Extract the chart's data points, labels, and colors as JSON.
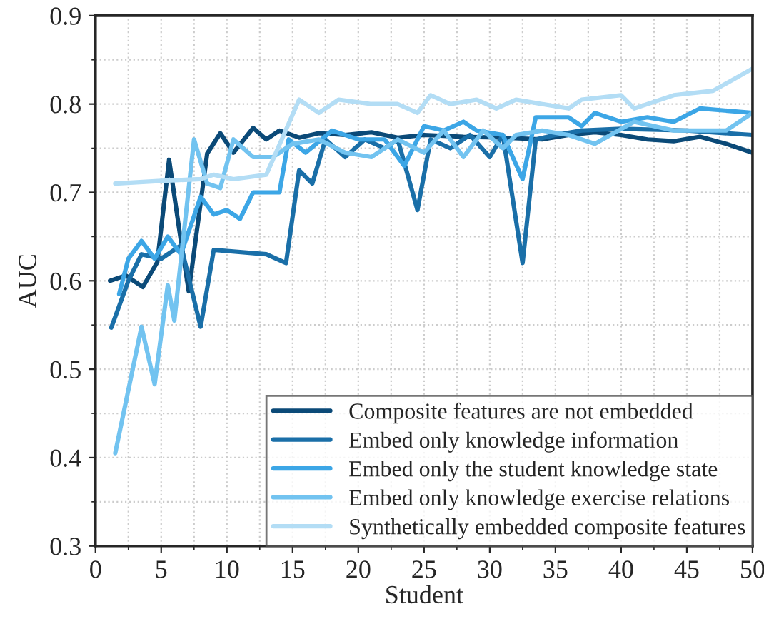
{
  "chart_data": {
    "type": "line",
    "xlabel": "Student",
    "ylabel": "AUC",
    "xlim": [
      0,
      50
    ],
    "ylim": [
      0.3,
      0.9
    ],
    "xticks": [
      0,
      5,
      10,
      15,
      20,
      25,
      30,
      35,
      40,
      45,
      50
    ],
    "yticks": [
      0.3,
      0.4,
      0.5,
      0.6,
      0.7,
      0.8,
      0.9
    ],
    "grid": true,
    "legend": "bottom right",
    "line_style": "solid",
    "marker": "none",
    "series": [
      {
        "name": "Composite features are not embedded",
        "color": "#0b4a78",
        "x": [
          1.1,
          2.3,
          3.6,
          4.7,
          5.6,
          6.5,
          7.1,
          8.5,
          9.5,
          10.5,
          12,
          13,
          14,
          15.5,
          17,
          19,
          21,
          23,
          25,
          28,
          31,
          34,
          36,
          38,
          40,
          42,
          44,
          46,
          48,
          50
        ],
        "values": [
          0.6,
          0.606,
          0.593,
          0.621,
          0.737,
          0.645,
          0.588,
          0.744,
          0.767,
          0.745,
          0.773,
          0.76,
          0.77,
          0.762,
          0.767,
          0.765,
          0.768,
          0.762,
          0.765,
          0.763,
          0.762,
          0.76,
          0.765,
          0.768,
          0.765,
          0.76,
          0.758,
          0.763,
          0.755,
          0.745
        ]
      },
      {
        "name": "Embed only knowledge information",
        "color": "#1a6fa8",
        "x": [
          1.2,
          2.5,
          3.5,
          5,
          6.5,
          8,
          9,
          13,
          14.5,
          15.5,
          16.5,
          17.5,
          19,
          20.5,
          22,
          23,
          24.5,
          25.5,
          27,
          28.5,
          30,
          31,
          32.5,
          33.5,
          35,
          37,
          40,
          45,
          50
        ],
        "values": [
          0.547,
          0.6,
          0.63,
          0.625,
          0.64,
          0.548,
          0.635,
          0.63,
          0.62,
          0.725,
          0.71,
          0.76,
          0.74,
          0.76,
          0.75,
          0.76,
          0.68,
          0.76,
          0.75,
          0.765,
          0.74,
          0.765,
          0.62,
          0.76,
          0.765,
          0.77,
          0.772,
          0.77,
          0.765
        ]
      },
      {
        "name": "Embed only the student knowledge state",
        "color": "#3ca6e6",
        "x": [
          1.8,
          2.5,
          3.5,
          4.5,
          5.5,
          6.5,
          8,
          9,
          10,
          11,
          12,
          14,
          14.7,
          16,
          18,
          20,
          22,
          23.5,
          25,
          26.5,
          28,
          29,
          31,
          32.5,
          33.5,
          35,
          36,
          37,
          38,
          40,
          42,
          44,
          46,
          50
        ],
        "values": [
          0.585,
          0.625,
          0.645,
          0.625,
          0.65,
          0.63,
          0.695,
          0.675,
          0.68,
          0.67,
          0.7,
          0.7,
          0.76,
          0.745,
          0.77,
          0.76,
          0.76,
          0.73,
          0.775,
          0.77,
          0.78,
          0.77,
          0.765,
          0.715,
          0.785,
          0.785,
          0.785,
          0.775,
          0.79,
          0.78,
          0.785,
          0.78,
          0.795,
          0.79
        ]
      },
      {
        "name": "Embed only knowledge exercise relations",
        "color": "#72c3f0",
        "x": [
          1.5,
          3.5,
          4.5,
          5.5,
          6,
          7.5,
          8.5,
          9.5,
          10.5,
          12,
          13.5,
          15,
          17,
          19,
          21,
          23,
          25,
          26.5,
          28,
          29.5,
          31,
          32,
          34,
          36,
          38,
          41,
          44,
          48,
          50
        ],
        "values": [
          0.405,
          0.548,
          0.483,
          0.595,
          0.555,
          0.76,
          0.71,
          0.705,
          0.76,
          0.74,
          0.74,
          0.755,
          0.76,
          0.745,
          0.74,
          0.76,
          0.745,
          0.77,
          0.74,
          0.77,
          0.75,
          0.765,
          0.77,
          0.765,
          0.755,
          0.78,
          0.77,
          0.77,
          0.79
        ]
      },
      {
        "name": "Synthetically embedded composite features",
        "color": "#b3ddf5",
        "x": [
          1.5,
          5,
          8,
          9,
          10.5,
          13,
          15.5,
          17,
          18.5,
          21,
          23,
          24.5,
          25.5,
          27,
          29,
          30.5,
          32,
          34,
          36,
          37,
          40,
          41,
          44,
          47,
          50
        ],
        "values": [
          0.71,
          0.713,
          0.715,
          0.72,
          0.715,
          0.72,
          0.805,
          0.79,
          0.805,
          0.8,
          0.8,
          0.79,
          0.81,
          0.8,
          0.805,
          0.795,
          0.805,
          0.8,
          0.795,
          0.805,
          0.81,
          0.795,
          0.81,
          0.815,
          0.84
        ]
      }
    ]
  }
}
